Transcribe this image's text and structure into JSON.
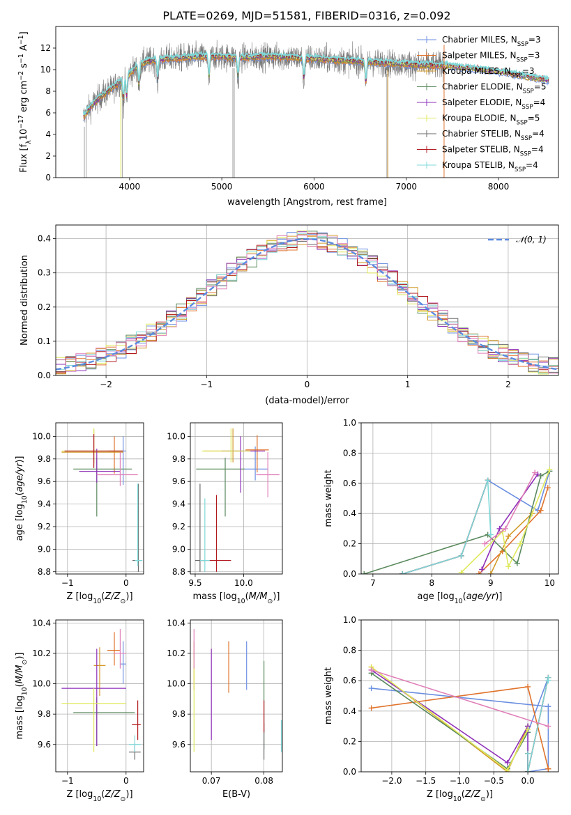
{
  "page_title": "PLATE=0269, MJD=51581, FIBERID=0316, z=0.092",
  "colors": {
    "Chabrier MILES": "#6b8fe0",
    "Salpeter MILES": "#e0732c",
    "Kroupa MILES": "#d39a2a",
    "Chabrier ELODIE": "#5b8a5e",
    "Salpeter ELODIE": "#8e2fb8",
    "Kroupa ELODIE": "#dfe85a",
    "Chabrier STELIB": "#6a6a6a",
    "Salpeter STELIB": "#b0181d",
    "Kroupa STELIB": "#7fd8d8",
    "Extra": "#e07fb8"
  },
  "chart_data": [
    {
      "id": "spectrum",
      "type": "line",
      "title": "PLATE=0269, MJD=51581, FIBERID=0316, z=0.092",
      "xlabel": "wavelength [Angstrom, rest frame]",
      "ylabel": "Flux [fλ10⁻¹⁷ erg cm⁻² s⁻¹ A⁻¹]",
      "xlim": [
        3200,
        8650
      ],
      "ylim": [
        0,
        14
      ],
      "xticks": [
        4000,
        5000,
        6000,
        7000,
        8000
      ],
      "yticks": [
        0,
        2,
        4,
        6,
        8,
        10,
        12
      ],
      "legend_position": "top-right",
      "legend": [
        {
          "label": "Chabrier MILES, N",
          "sub": "SSP",
          "suffix": "=3",
          "color": "Chabrier MILES"
        },
        {
          "label": "Salpeter MILES, N",
          "sub": "SSP",
          "suffix": "=3",
          "color": "Salpeter MILES"
        },
        {
          "label": "Kroupa MILES, N",
          "sub": "SSP",
          "suffix": "=3",
          "color": "Kroupa MILES"
        },
        {
          "label": "Chabrier ELODIE, N",
          "sub": "SSP",
          "suffix": "=5",
          "color": "Chabrier ELODIE"
        },
        {
          "label": "Salpeter ELODIE, N",
          "sub": "SSP",
          "suffix": "=4",
          "color": "Salpeter ELODIE"
        },
        {
          "label": "Kroupa ELODIE, N",
          "sub": "SSP",
          "suffix": "=5",
          "color": "Kroupa ELODIE"
        },
        {
          "label": "Chabrier STELIB, N",
          "sub": "SSP",
          "suffix": "=4",
          "color": "Chabrier STELIB"
        },
        {
          "label": "Salpeter STELIB, N",
          "sub": "SSP",
          "suffix": "=4",
          "color": "Salpeter STELIB"
        },
        {
          "label": "Kroupa STELIB, N",
          "sub": "SSP",
          "suffix": "=4",
          "color": "Kroupa STELIB"
        }
      ],
      "continuum": [
        [
          3500,
          5.6
        ],
        [
          3600,
          6.8
        ],
        [
          3700,
          7.6
        ],
        [
          3800,
          8.2
        ],
        [
          3900,
          8.9
        ],
        [
          4000,
          9.6
        ],
        [
          4100,
          10.4
        ],
        [
          4200,
          10.8
        ],
        [
          4400,
          11.0
        ],
        [
          4600,
          11.1
        ],
        [
          4800,
          11.2
        ],
        [
          5000,
          11.2
        ],
        [
          5200,
          11.1
        ],
        [
          5400,
          11.2
        ],
        [
          5600,
          11.2
        ],
        [
          5800,
          11.1
        ],
        [
          6000,
          11.0
        ],
        [
          6200,
          10.9
        ],
        [
          6400,
          10.8
        ],
        [
          6600,
          10.7
        ],
        [
          6800,
          10.6
        ],
        [
          7000,
          10.5
        ],
        [
          7200,
          10.4
        ],
        [
          7400,
          10.4
        ],
        [
          7600,
          10.2
        ],
        [
          7800,
          10.0
        ],
        [
          8000,
          9.8
        ],
        [
          8200,
          9.5
        ],
        [
          8400,
          9.2
        ],
        [
          8550,
          9.0
        ]
      ],
      "absorption_lines": [
        3933,
        3968,
        4101,
        4304,
        4861,
        5175,
        5890,
        6563
      ],
      "data_range": [
        3500,
        7420
      ],
      "model_range": [
        3500,
        8550
      ]
    },
    {
      "id": "residuals",
      "type": "histogram",
      "xlabel": "(data-model)/error",
      "ylabel": "Normed distribution",
      "xlim": [
        -2.5,
        2.5
      ],
      "ylim": [
        0,
        0.44
      ],
      "xticks": [
        -2,
        -1,
        0,
        1,
        2
      ],
      "yticks": [
        0.0,
        0.1,
        0.2,
        0.3,
        0.4
      ],
      "bin_width": 0.1,
      "n_histograms": 10,
      "reference_curve": "N(0,1)",
      "legend_position": "top-right",
      "legend": [
        {
          "label": "𝒩(0, 1)"
        }
      ]
    },
    {
      "id": "age-vs-Z",
      "type": "errorbar",
      "xlabel": "Z [log₁₀(Z/Z⊙)]",
      "ylabel": "age  [log₁₀(age/yr)]",
      "xlim": [
        -1.2,
        0.3
      ],
      "ylim": [
        8.78,
        10.12
      ],
      "xticks": [
        -1,
        0
      ],
      "yticks": [
        8.8,
        9.0,
        9.2,
        9.4,
        9.6,
        9.8,
        10.0
      ],
      "points": [
        {
          "color": "Chabrier MILES",
          "x": -0.05,
          "y": 9.87,
          "xlo": 0.05,
          "xhi": 0.05,
          "ylo": 0.3,
          "yhi": 0.13
        },
        {
          "color": "Salpeter MILES",
          "x": -0.2,
          "y": 9.87,
          "xlo": 0.1,
          "xhi": 0.1,
          "ylo": 0.2,
          "yhi": 0.13
        },
        {
          "color": "Kroupa MILES",
          "x": -0.55,
          "y": 9.86,
          "xlo": 0.55,
          "xhi": 0.5,
          "ylo": 0.1,
          "yhi": 0.2
        },
        {
          "color": "Chabrier ELODIE",
          "x": -0.5,
          "y": 9.71,
          "xlo": 0.4,
          "xhi": 0.6,
          "ylo": 0.42,
          "yhi": 0.1
        },
        {
          "color": "Salpeter ELODIE",
          "x": -0.5,
          "y": 9.69,
          "xlo": 0.3,
          "xhi": 0.4,
          "ylo": 0.1,
          "yhi": 0.2
        },
        {
          "color": "Kroupa ELODIE",
          "x": -0.55,
          "y": 9.87,
          "xlo": 0.55,
          "xhi": 0.5,
          "ylo": 0.1,
          "yhi": 0.2
        },
        {
          "color": "Chabrier STELIB",
          "x": 0.21,
          "y": 8.9,
          "xlo": 0.1,
          "xhi": 0.05,
          "ylo": 0.1,
          "yhi": 0.68
        },
        {
          "color": "Salpeter STELIB",
          "x": -0.55,
          "y": 9.87,
          "xlo": 0.5,
          "xhi": 0.5,
          "ylo": 0.15,
          "yhi": 0.15
        },
        {
          "color": "Kroupa STELIB",
          "x": 0.2,
          "y": 8.9,
          "xlo": 0.05,
          "xhi": 0.08,
          "ylo": 0.05,
          "yhi": 0.68
        },
        {
          "color": "Extra",
          "x": -0.1,
          "y": 9.66,
          "xlo": 0.4,
          "xhi": 0.3,
          "ylo": 0.1,
          "yhi": 0.2
        }
      ]
    },
    {
      "id": "age-vs-mass",
      "type": "errorbar",
      "xlabel": "mass [log₁₀(M/M⊙)]",
      "ylabel": "",
      "xlim": [
        9.45,
        10.4
      ],
      "ylim": [
        8.78,
        10.12
      ],
      "xticks": [
        9.5,
        10.0
      ],
      "yticks": [
        8.8,
        9.0,
        9.2,
        9.4,
        9.6,
        9.8,
        10.0
      ],
      "points": [
        {
          "color": "Chabrier MILES",
          "x": 10.12,
          "y": 9.71,
          "xlo": 0.12,
          "xhi": 0.13,
          "ylo": 0.1,
          "yhi": 0.2
        },
        {
          "color": "Salpeter MILES",
          "x": 10.14,
          "y": 9.88,
          "xlo": 0.12,
          "xhi": 0.12,
          "ylo": 0.2,
          "yhi": 0.13
        },
        {
          "color": "Kroupa MILES",
          "x": 9.89,
          "y": 9.87,
          "xlo": 0.3,
          "xhi": 0.1,
          "ylo": 0.1,
          "yhi": 0.2
        },
        {
          "color": "Chabrier ELODIE",
          "x": 9.81,
          "y": 9.71,
          "xlo": 0.3,
          "xhi": 0.2,
          "ylo": 0.42,
          "yhi": 0.1
        },
        {
          "color": "Salpeter ELODIE",
          "x": 9.97,
          "y": 9.87,
          "xlo": 0.2,
          "xhi": 0.25,
          "ylo": 0.37,
          "yhi": 0.13
        },
        {
          "color": "Kroupa ELODIE",
          "x": 9.87,
          "y": 9.87,
          "xlo": 0.3,
          "xhi": 0.2,
          "ylo": 0.1,
          "yhi": 0.2
        },
        {
          "color": "Chabrier STELIB",
          "x": 9.55,
          "y": 8.9,
          "xlo": 0.05,
          "xhi": 0.05,
          "ylo": 0.1,
          "yhi": 0.68
        },
        {
          "color": "Salpeter STELIB",
          "x": 9.72,
          "y": 8.9,
          "xlo": 0.15,
          "xhi": 0.15,
          "ylo": 0.1,
          "yhi": 0.58
        },
        {
          "color": "Kroupa STELIB",
          "x": 9.6,
          "y": 8.9,
          "xlo": 0.05,
          "xhi": 0.05,
          "ylo": 0.1,
          "yhi": 0.55
        },
        {
          "color": "Extra",
          "x": 10.25,
          "y": 9.66,
          "xlo": 0.12,
          "xhi": 0.12,
          "ylo": 0.2,
          "yhi": 0.2
        }
      ]
    },
    {
      "id": "mass-weight-vs-age",
      "type": "line",
      "xlabel": "age  [log₁₀(age/yr)]",
      "ylabel": "mass weight",
      "xlim": [
        6.8,
        10.15
      ],
      "ylim": [
        0,
        1.0
      ],
      "xticks": [
        7,
        8,
        9,
        10
      ],
      "yticks": [
        0.0,
        0.2,
        0.4,
        0.6,
        0.8,
        1.0
      ],
      "series": [
        {
          "color": "Chabrier MILES",
          "x": [
            7.5,
            8.5,
            8.95,
            9.8,
            10.0
          ],
          "y": [
            0.0,
            0.12,
            0.62,
            0.42,
            0.68
          ]
        },
        {
          "color": "Salpeter MILES",
          "x": [
            8.8,
            9.2,
            9.85,
            9.97
          ],
          "y": [
            0.0,
            0.15,
            0.42,
            0.57
          ]
        },
        {
          "color": "Kroupa MILES",
          "x": [
            9.0,
            9.3,
            9.7
          ],
          "y": [
            0.0,
            0.25,
            0.4
          ]
        },
        {
          "color": "Chabrier ELODIE",
          "x": [
            6.85,
            8.95,
            9.45,
            9.85,
            10.0
          ],
          "y": [
            0.0,
            0.26,
            0.07,
            0.65,
            0.68
          ]
        },
        {
          "color": "Salpeter ELODIE",
          "x": [
            8.85,
            9.15,
            9.8
          ],
          "y": [
            0.03,
            0.3,
            0.66
          ]
        },
        {
          "color": "Kroupa ELODIE",
          "x": [
            8.5,
            9.2,
            9.3,
            9.5,
            10.0
          ],
          "y": [
            0.01,
            0.28,
            0.05,
            0.2,
            0.69
          ]
        },
        {
          "color": "Chabrier STELIB",
          "x": [
            7.5,
            8.5,
            8.95
          ],
          "y": [
            0.0,
            0.12,
            0.62
          ]
        },
        {
          "color": "Salpeter STELIB",
          "x": [
            7.5,
            8.5,
            8.95
          ],
          "y": [
            0.0,
            0.12,
            0.62
          ]
        },
        {
          "color": "Kroupa STELIB",
          "x": [
            7.5,
            8.5,
            8.95,
            9.0
          ],
          "y": [
            0.0,
            0.12,
            0.62,
            0.26
          ]
        },
        {
          "color": "Extra",
          "x": [
            8.9,
            9.25,
            9.75
          ],
          "y": [
            0.2,
            0.3,
            0.67
          ]
        }
      ]
    },
    {
      "id": "mass-vs-Z",
      "type": "errorbar",
      "xlabel": "Z [log₁₀(Z/Z⊙)]",
      "ylabel": "mass [log₁₀(M/M⊙)]",
      "xlim": [
        -1.2,
        0.3
      ],
      "ylim": [
        9.42,
        10.42
      ],
      "xticks": [
        -1,
        0
      ],
      "yticks": [
        9.6,
        9.8,
        10.0,
        10.2,
        10.4
      ],
      "points": [
        {
          "color": "Chabrier MILES",
          "x": -0.05,
          "y": 10.13,
          "xlo": 0.05,
          "xhi": 0.05,
          "ylo": 0.13,
          "yhi": 0.15
        },
        {
          "color": "Salpeter MILES",
          "x": -0.2,
          "y": 10.22,
          "xlo": 0.12,
          "xhi": 0.1,
          "ylo": 0.1,
          "yhi": 0.12
        },
        {
          "color": "Kroupa MILES",
          "x": -0.45,
          "y": 10.12,
          "xlo": 0.1,
          "xhi": 0.1,
          "ylo": 0.2,
          "yhi": 0.12
        },
        {
          "color": "Chabrier ELODIE",
          "x": -0.5,
          "y": 9.81,
          "xlo": 0.4,
          "xhi": 0.65,
          "ylo": 0.22,
          "yhi": 0.1
        },
        {
          "color": "Salpeter ELODIE",
          "x": -0.5,
          "y": 9.97,
          "xlo": 0.6,
          "xhi": 0.5,
          "ylo": 0.38,
          "yhi": 0.26
        },
        {
          "color": "Kroupa ELODIE",
          "x": -0.55,
          "y": 9.87,
          "xlo": 0.55,
          "xhi": 0.55,
          "ylo": 0.32,
          "yhi": 0.1
        },
        {
          "color": "Chabrier STELIB",
          "x": 0.15,
          "y": 9.55,
          "xlo": 0.1,
          "xhi": 0.1,
          "ylo": 0.05,
          "yhi": 0.06
        },
        {
          "color": "Salpeter STELIB",
          "x": 0.2,
          "y": 9.73,
          "xlo": 0.1,
          "xhi": 0.05,
          "ylo": 0.1,
          "yhi": 0.16
        },
        {
          "color": "Kroupa STELIB",
          "x": 0.15,
          "y": 9.6,
          "xlo": 0.1,
          "xhi": 0.1,
          "ylo": 0.05,
          "yhi": 0.06
        },
        {
          "color": "Extra",
          "x": -0.1,
          "y": 10.2,
          "xlo": 0.1,
          "xhi": 0.1,
          "ylo": 0.1,
          "yhi": 0.16
        }
      ]
    },
    {
      "id": "mass-vs-ebv",
      "type": "errorbar",
      "xlabel": "E(B-V)",
      "ylabel": "",
      "xlim": [
        0.066,
        0.0835
      ],
      "ylim": [
        9.42,
        10.42
      ],
      "xticks": [
        0.07,
        0.08
      ],
      "yticks": [
        9.6,
        9.8,
        10.0,
        10.2,
        10.4
      ],
      "points": [
        {
          "color": "Chabrier MILES",
          "x": 0.0767,
          "y": 10.1,
          "xlo": 0,
          "xhi": 0,
          "ylo": 0.14,
          "yhi": 0.18
        },
        {
          "color": "Salpeter MILES",
          "x": 0.0733,
          "y": 10.1,
          "xlo": 0,
          "xhi": 0,
          "ylo": 0.16,
          "yhi": 0.18
        },
        {
          "color": "Kroupa MILES",
          "x": 0.0667,
          "y": 10.1,
          "xlo": 0,
          "xhi": 0,
          "ylo": 0.14,
          "yhi": 0.18
        },
        {
          "color": "Chabrier ELODIE",
          "x": 0.08,
          "y": 9.85,
          "xlo": 0,
          "xhi": 0,
          "ylo": 0.28,
          "yhi": 0.3
        },
        {
          "color": "Salpeter ELODIE",
          "x": 0.07,
          "y": 9.93,
          "xlo": 0,
          "xhi": 0,
          "ylo": 0.3,
          "yhi": 0.3
        },
        {
          "color": "Kroupa ELODIE",
          "x": 0.0667,
          "y": 9.87,
          "xlo": 0,
          "xhi": 0,
          "ylo": 0.32,
          "yhi": 0.3
        },
        {
          "color": "Chabrier STELIB",
          "x": 0.08,
          "y": 9.62,
          "xlo": 0,
          "xhi": 0,
          "ylo": 0.12,
          "yhi": 0.12
        },
        {
          "color": "Salpeter STELIB",
          "x": 0.08,
          "y": 9.78,
          "xlo": 0,
          "xhi": 0,
          "ylo": 0.1,
          "yhi": 0.11
        },
        {
          "color": "Kroupa STELIB",
          "x": 0.0833,
          "y": 9.65,
          "xlo": 0,
          "xhi": 0,
          "ylo": 0.1,
          "yhi": 0.11
        },
        {
          "color": "Extra",
          "x": 0.0667,
          "y": 10.2,
          "xlo": 0,
          "xhi": 0,
          "ylo": 0.1,
          "yhi": 0.16
        }
      ]
    },
    {
      "id": "mass-weight-vs-Z",
      "type": "line",
      "xlabel": "Z [log₁₀(Z/Z⊙)]",
      "ylabel": "mass weight",
      "xlim": [
        -2.45,
        0.45
      ],
      "ylim": [
        0,
        1.0
      ],
      "xticks": [
        -2.0,
        -1.5,
        -1.0,
        -0.5,
        0.0
      ],
      "yticks": [
        0.0,
        0.2,
        0.4,
        0.6,
        0.8,
        1.0
      ],
      "series": [
        {
          "color": "Chabrier MILES",
          "x": [
            -2.3,
            0.3,
            0.3,
            0.0,
            0.0,
            0.3
          ],
          "y": [
            0.55,
            0.43,
            0.02,
            0.0,
            0.26,
            0.62
          ]
        },
        {
          "color": "Salpeter MILES",
          "x": [
            -2.3,
            0.0,
            0.3,
            0.3
          ],
          "y": [
            0.42,
            0.56,
            0.02,
            0.02
          ]
        },
        {
          "color": "Kroupa MILES",
          "x": [
            -2.3,
            -0.3,
            0.0
          ],
          "y": [
            0.69,
            0.0,
            0.3
          ]
        },
        {
          "color": "Chabrier ELODIE",
          "x": [
            -2.3,
            -0.3,
            0.0,
            0.0
          ],
          "y": [
            0.65,
            0.02,
            0.26,
            0.3
          ]
        },
        {
          "color": "Salpeter ELODIE",
          "x": [
            -2.3,
            -0.3,
            0.0,
            0.0
          ],
          "y": [
            0.67,
            0.06,
            0.3,
            0.0
          ]
        },
        {
          "color": "Kroupa ELODIE",
          "x": [
            -2.3,
            -0.3,
            0.0
          ],
          "y": [
            0.69,
            0.01,
            0.28
          ]
        },
        {
          "color": "Chabrier STELIB",
          "x": [
            0.0,
            0.0,
            0.3
          ],
          "y": [
            0.12,
            0.0,
            0.62
          ]
        },
        {
          "color": "Salpeter STELIB",
          "x": [
            0.0,
            0.0,
            0.3
          ],
          "y": [
            0.12,
            0.0,
            0.62
          ]
        },
        {
          "color": "Kroupa STELIB",
          "x": [
            0.0,
            0.0,
            0.3,
            0.3
          ],
          "y": [
            0.12,
            0.0,
            0.62,
            0.6
          ]
        },
        {
          "color": "Extra",
          "x": [
            -2.3,
            0.3
          ],
          "y": [
            0.67,
            0.3
          ]
        }
      ]
    }
  ]
}
